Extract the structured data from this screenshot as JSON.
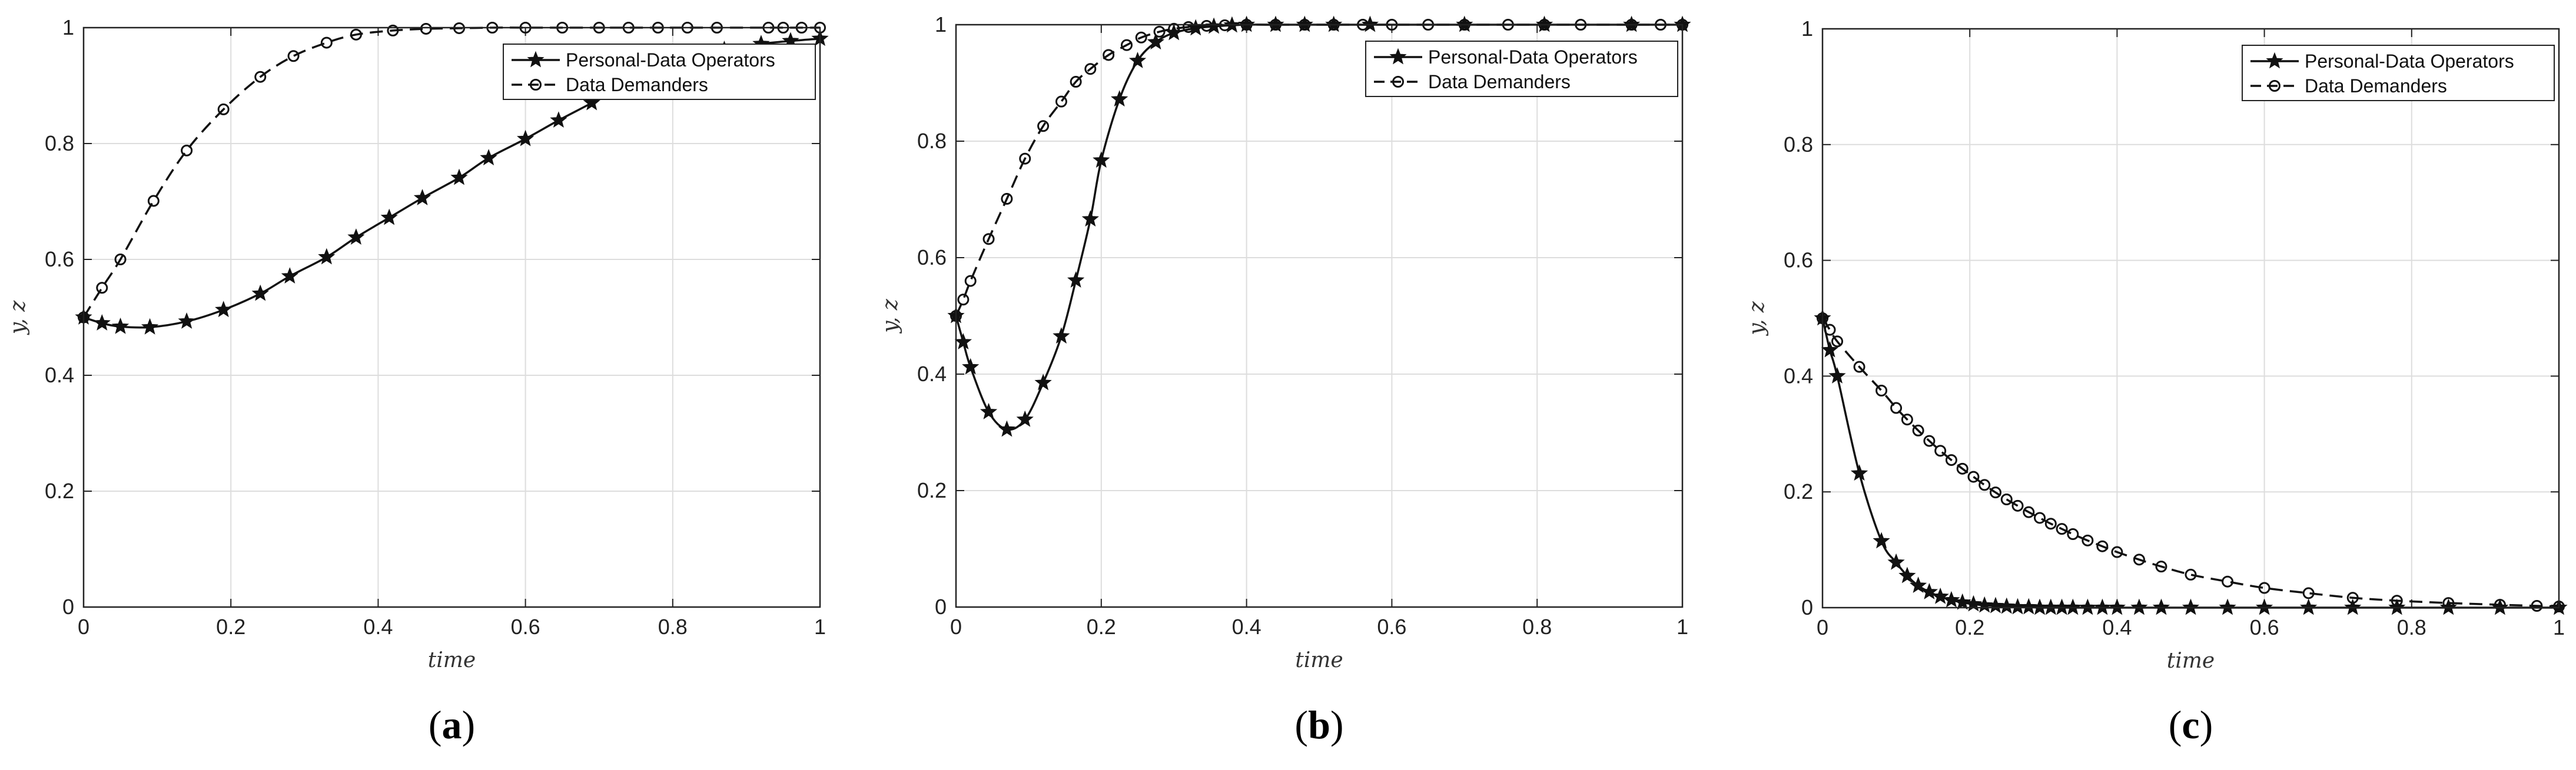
{
  "chart_data": [
    {
      "type": "line",
      "panel_label": "(a)",
      "panel_letter": "a",
      "xlabel": "time",
      "ylabel": "y, z",
      "xlim": [
        0,
        1
      ],
      "ylim": [
        0,
        1
      ],
      "xticks": [
        "0",
        "0.2",
        "0.4",
        "0.6",
        "0.8",
        "1"
      ],
      "yticks": [
        "0",
        "0.2",
        "0.4",
        "0.6",
        "0.8",
        "1"
      ],
      "grid": true,
      "legend_position": "top-right",
      "series": [
        {
          "name": "Personal-Data Operators",
          "line_style": "solid",
          "marker": "star",
          "x": [
            0,
            0.025,
            0.05,
            0.09,
            0.14,
            0.19,
            0.24,
            0.28,
            0.33,
            0.37,
            0.415,
            0.46,
            0.51,
            0.55,
            0.6,
            0.645,
            0.69,
            0.73,
            0.78,
            0.83,
            0.87,
            0.92,
            0.96,
            1.0
          ],
          "y": [
            0.5,
            0.49,
            0.484,
            0.483,
            0.493,
            0.513,
            0.541,
            0.571,
            0.604,
            0.638,
            0.672,
            0.706,
            0.741,
            0.775,
            0.808,
            0.84,
            0.87,
            0.898,
            0.924,
            0.947,
            0.962,
            0.972,
            0.977,
            0.981
          ]
        },
        {
          "name": "Data Demanders",
          "line_style": "dashed",
          "marker": "circle",
          "x": [
            0,
            0.025,
            0.05,
            0.095,
            0.14,
            0.19,
            0.24,
            0.285,
            0.33,
            0.37,
            0.42,
            0.465,
            0.51,
            0.555,
            0.6,
            0.65,
            0.7,
            0.74,
            0.78,
            0.82,
            0.86,
            0.93,
            0.95,
            0.975,
            1.0
          ],
          "y": [
            0.5,
            0.551,
            0.6,
            0.701,
            0.788,
            0.859,
            0.915,
            0.951,
            0.974,
            0.988,
            0.995,
            0.998,
            0.999,
            1.0,
            1.0,
            1.0,
            1.0,
            1.0,
            1.0,
            1.0,
            1.0,
            1.0,
            1.0,
            1.0,
            1.0
          ]
        }
      ]
    },
    {
      "type": "line",
      "panel_label": "(b)",
      "panel_letter": "b",
      "xlabel": "time",
      "ylabel": "y, z",
      "xlim": [
        0,
        1
      ],
      "ylim": [
        0,
        1
      ],
      "xticks": [
        "0",
        "0.2",
        "0.4",
        "0.6",
        "0.8",
        "1"
      ],
      "yticks": [
        "0",
        "0.2",
        "0.4",
        "0.6",
        "0.8",
        "1"
      ],
      "grid": true,
      "legend_position": "top-right",
      "series": [
        {
          "name": "Personal-Data Operators",
          "line_style": "solid",
          "marker": "star",
          "x": [
            0,
            0.01,
            0.02,
            0.045,
            0.07,
            0.095,
            0.12,
            0.145,
            0.165,
            0.185,
            0.2,
            0.225,
            0.25,
            0.275,
            0.3,
            0.33,
            0.355,
            0.38,
            0.4,
            0.44,
            0.48,
            0.52,
            0.57,
            0.7,
            0.81,
            0.93,
            1.0
          ],
          "y": [
            0.5,
            0.455,
            0.412,
            0.335,
            0.305,
            0.322,
            0.385,
            0.465,
            0.561,
            0.666,
            0.767,
            0.872,
            0.938,
            0.97,
            0.986,
            0.994,
            0.997,
            0.999,
            1.0,
            1.0,
            1.0,
            1.0,
            1.0,
            1.0,
            1.0,
            1.0,
            1.0
          ]
        },
        {
          "name": "Data Demanders",
          "line_style": "dashed",
          "marker": "circle",
          "x": [
            0,
            0.01,
            0.02,
            0.045,
            0.07,
            0.095,
            0.12,
            0.145,
            0.165,
            0.185,
            0.21,
            0.235,
            0.255,
            0.28,
            0.3,
            0.32,
            0.345,
            0.37,
            0.4,
            0.44,
            0.48,
            0.52,
            0.56,
            0.6,
            0.65,
            0.7,
            0.76,
            0.81,
            0.86,
            0.93,
            0.97,
            1.0
          ],
          "y": [
            0.5,
            0.528,
            0.56,
            0.632,
            0.701,
            0.77,
            0.826,
            0.868,
            0.902,
            0.924,
            0.948,
            0.965,
            0.978,
            0.988,
            0.993,
            0.996,
            0.998,
            0.999,
            1.0,
            1.0,
            1.0,
            1.0,
            1.0,
            1.0,
            1.0,
            1.0,
            1.0,
            1.0,
            1.0,
            1.0,
            1.0,
            1.0
          ]
        }
      ]
    },
    {
      "type": "line",
      "panel_label": "(c)",
      "panel_letter": "c",
      "xlabel": "time",
      "ylabel": "y, z",
      "xlim": [
        0,
        1
      ],
      "ylim": [
        0,
        1
      ],
      "xticks": [
        "0",
        "0.2",
        "0.4",
        "0.6",
        "0.8",
        "1"
      ],
      "yticks": [
        "0",
        "0.2",
        "0.4",
        "0.6",
        "0.8",
        "1"
      ],
      "grid": true,
      "legend_position": "top-right",
      "series": [
        {
          "name": "Personal-Data Operators",
          "line_style": "solid",
          "marker": "star",
          "x": [
            0,
            0.01,
            0.02,
            0.05,
            0.08,
            0.1,
            0.115,
            0.13,
            0.145,
            0.16,
            0.175,
            0.19,
            0.205,
            0.22,
            0.235,
            0.25,
            0.265,
            0.28,
            0.295,
            0.31,
            0.325,
            0.34,
            0.36,
            0.38,
            0.4,
            0.43,
            0.46,
            0.5,
            0.55,
            0.6,
            0.66,
            0.72,
            0.78,
            0.85,
            0.92,
            1.0
          ],
          "y": [
            0.5,
            0.445,
            0.4,
            0.232,
            0.115,
            0.078,
            0.055,
            0.038,
            0.027,
            0.019,
            0.013,
            0.009,
            0.006,
            0.004,
            0.003,
            0.002,
            0.001,
            0.001,
            0.0,
            0.0,
            0.0,
            0.0,
            0.0,
            0.0,
            0.0,
            0.0,
            0.0,
            0.0,
            0.0,
            0.0,
            0.0,
            0.0,
            0.0,
            0.0,
            0.0,
            0.0
          ]
        },
        {
          "name": "Data Demanders",
          "line_style": "dashed",
          "marker": "circle",
          "x": [
            0,
            0.01,
            0.02,
            0.05,
            0.08,
            0.1,
            0.115,
            0.13,
            0.145,
            0.16,
            0.175,
            0.19,
            0.205,
            0.22,
            0.235,
            0.25,
            0.265,
            0.28,
            0.295,
            0.31,
            0.325,
            0.34,
            0.36,
            0.38,
            0.4,
            0.43,
            0.46,
            0.5,
            0.55,
            0.6,
            0.66,
            0.72,
            0.78,
            0.85,
            0.92,
            0.97,
            1.0
          ],
          "y": [
            0.5,
            0.48,
            0.46,
            0.416,
            0.375,
            0.345,
            0.325,
            0.306,
            0.288,
            0.271,
            0.255,
            0.24,
            0.226,
            0.212,
            0.199,
            0.187,
            0.176,
            0.165,
            0.155,
            0.145,
            0.136,
            0.127,
            0.116,
            0.106,
            0.096,
            0.083,
            0.071,
            0.057,
            0.045,
            0.034,
            0.025,
            0.017,
            0.012,
            0.008,
            0.005,
            0.003,
            0.002
          ]
        }
      ]
    }
  ]
}
